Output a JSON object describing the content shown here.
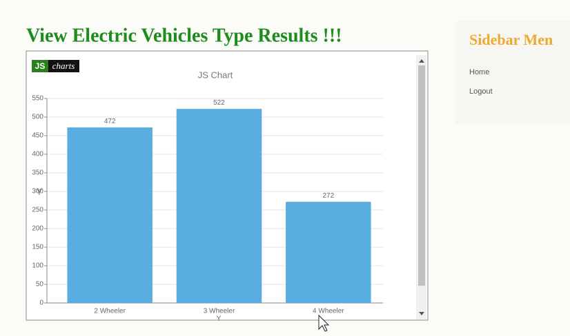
{
  "header": {
    "title": "View Electric Vehicles Type Results !!!"
  },
  "sidebar": {
    "title": "Sidebar Men",
    "links": [
      "Home",
      "Logout"
    ]
  },
  "chart_data": {
    "type": "bar",
    "logo": {
      "badge": "JS",
      "text": "charts"
    },
    "title": "JS Chart",
    "y_label": "Y",
    "x_label": "Y",
    "categories": [
      "2 Wheeler",
      "3 Wheeler",
      "4 Wheeler"
    ],
    "values": [
      472,
      522,
      272
    ],
    "color": "#5aade0",
    "ylim": [
      0,
      550
    ],
    "yticks": [
      0,
      50,
      100,
      150,
      200,
      250,
      300,
      350,
      400,
      450,
      500,
      550
    ],
    "grid": true
  }
}
